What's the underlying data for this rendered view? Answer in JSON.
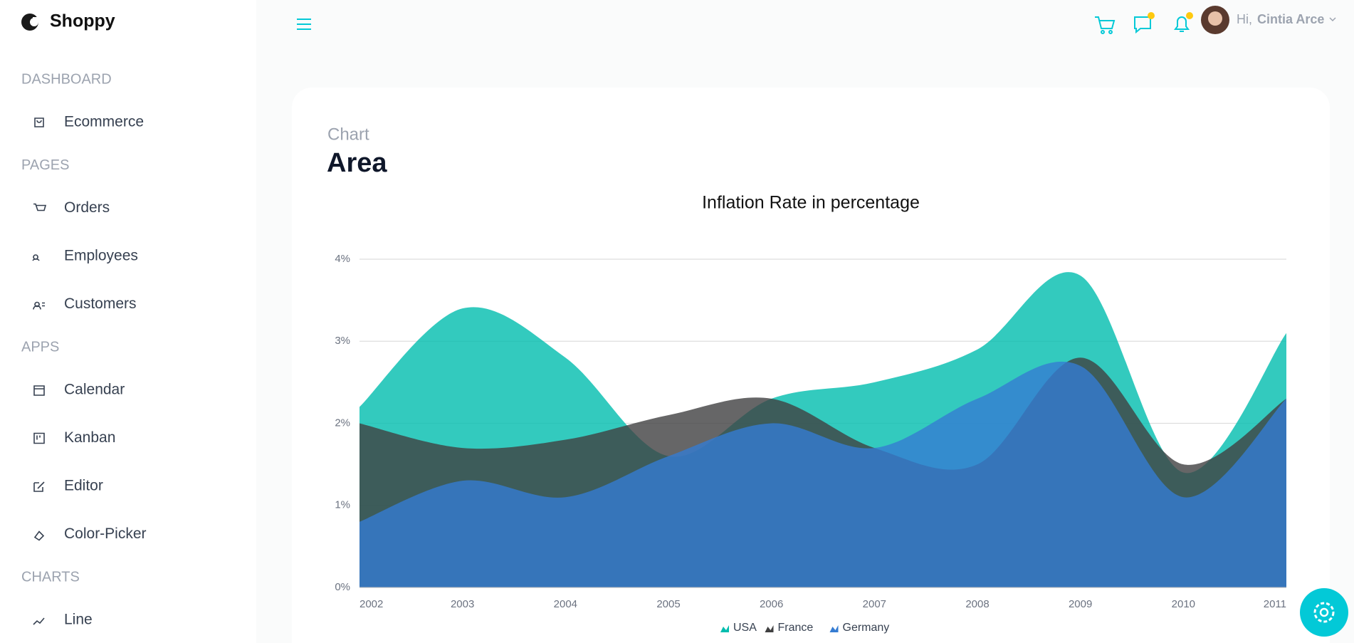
{
  "brand": "Shoppy",
  "sidebar": [
    {
      "title": "DASHBOARD",
      "items": [
        "Ecommerce"
      ]
    },
    {
      "title": "PAGES",
      "items": [
        "Orders",
        "Employees",
        "Customers"
      ]
    },
    {
      "title": "APPS",
      "items": [
        "Calendar",
        "Kanban",
        "Editor",
        "Color-Picker"
      ]
    },
    {
      "title": "CHARTS",
      "items": [
        "Line"
      ]
    }
  ],
  "header": {
    "greeting": "Hi,",
    "user": "Cintia Arce"
  },
  "card": {
    "category": "Chart",
    "title": "Area"
  },
  "chart_data": {
    "type": "area",
    "title": "Inflation Rate in percentage",
    "x": [
      2002,
      2003,
      2004,
      2005,
      2006,
      2007,
      2008,
      2009,
      2010,
      2011
    ],
    "xlim": [
      2002,
      2011
    ],
    "xticks": [
      2002,
      2003,
      2004,
      2005,
      2006,
      2007,
      2008,
      2009,
      2010,
      2011
    ],
    "ylim": [
      0,
      4
    ],
    "yticks": [
      {
        "value": 0,
        "label": "0%"
      },
      {
        "value": 1,
        "label": "1%"
      },
      {
        "value": 2,
        "label": "2%"
      },
      {
        "value": 3,
        "label": "3%"
      },
      {
        "value": 4,
        "label": "4%"
      }
    ],
    "grid": true,
    "series": [
      {
        "name": "USA",
        "color": "#00bdae",
        "values": [
          2.2,
          3.4,
          2.8,
          1.6,
          2.3,
          2.5,
          2.9,
          3.8,
          1.4,
          3.1
        ]
      },
      {
        "name": "France",
        "color": "#404041",
        "values": [
          2.0,
          1.7,
          1.8,
          2.1,
          2.3,
          1.7,
          1.5,
          2.8,
          1.5,
          2.3
        ]
      },
      {
        "name": "Germany",
        "color": "#357cd2",
        "values": [
          0.8,
          1.3,
          1.1,
          1.6,
          2.0,
          1.7,
          2.3,
          2.7,
          1.1,
          2.3
        ]
      }
    ]
  }
}
